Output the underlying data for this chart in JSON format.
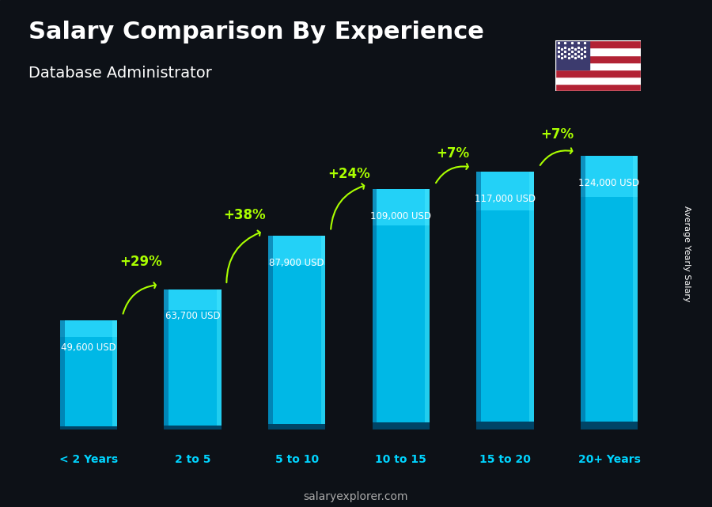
{
  "categories": [
    "< 2 Years",
    "2 to 5",
    "5 to 10",
    "10 to 15",
    "15 to 20",
    "20+ Years"
  ],
  "values": [
    49600,
    63700,
    87900,
    109000,
    117000,
    124000
  ],
  "salary_labels": [
    "49,600 USD",
    "63,700 USD",
    "87,900 USD",
    "109,000 USD",
    "117,000 USD",
    "124,000 USD"
  ],
  "pct_changes": [
    "+29%",
    "+38%",
    "+24%",
    "+7%",
    "+7%"
  ],
  "bar_color_top": "#00d4ff",
  "bar_color_mid": "#00aadd",
  "bar_color_bottom": "#007bb5",
  "title": "Salary Comparison By Experience",
  "subtitle": "Database Administrator",
  "ylabel": "Average Yearly Salary",
  "footer": "salaryexplorer.com",
  "background_color": "#1a1a2e",
  "title_color": "#ffffff",
  "subtitle_color": "#ffffff",
  "label_color": "#ffffff",
  "pct_color": "#aaff00",
  "category_color": "#00d4ff",
  "footer_color": "#aaaaaa"
}
